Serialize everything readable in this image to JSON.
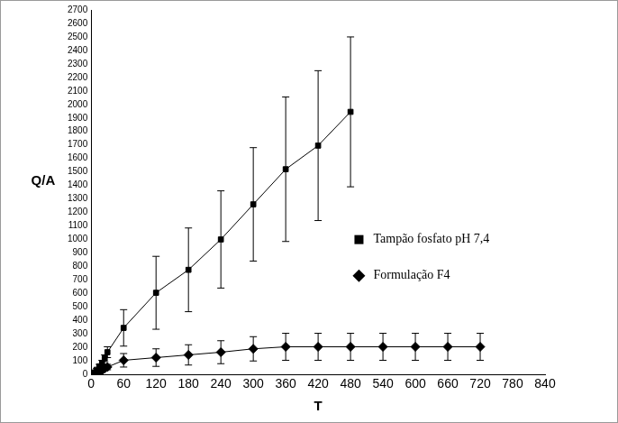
{
  "chart_data": {
    "type": "line",
    "x_label": "T",
    "y_label": "Q/A",
    "xlim": [
      0,
      840
    ],
    "xticks": [
      0,
      60,
      120,
      180,
      240,
      300,
      360,
      420,
      480,
      540,
      600,
      660,
      720,
      780,
      840
    ],
    "ylim": [
      0,
      2700
    ],
    "yticks": [
      0,
      100,
      200,
      300,
      400,
      500,
      600,
      700,
      800,
      900,
      1000,
      1100,
      1200,
      1300,
      1400,
      1500,
      1600,
      1700,
      1800,
      1900,
      2000,
      2100,
      2200,
      2300,
      2400,
      2500,
      2600,
      2700
    ],
    "grid": false,
    "legend": "right",
    "series": [
      {
        "name": "Tampão fosfato pH 7,4",
        "color": "#000000",
        "marker": "square",
        "x": [
          0,
          5,
          10,
          15,
          20,
          25,
          30,
          60,
          120,
          180,
          240,
          300,
          360,
          420,
          480
        ],
        "values": [
          0,
          15,
          35,
          60,
          85,
          120,
          165,
          345,
          605,
          775,
          1000,
          1260,
          1520,
          1695,
          1945
        ],
        "errors": [
          0,
          5,
          10,
          15,
          20,
          25,
          40,
          135,
          270,
          310,
          360,
          420,
          535,
          555,
          555
        ]
      },
      {
        "name": "Formulação F4",
        "color": "#000000",
        "marker": "diamond",
        "x": [
          0,
          5,
          10,
          15,
          20,
          25,
          30,
          60,
          120,
          180,
          240,
          300,
          360,
          420,
          480,
          540,
          600,
          660,
          720
        ],
        "values": [
          0,
          5,
          10,
          20,
          30,
          45,
          55,
          105,
          125,
          145,
          165,
          190,
          205,
          205,
          205,
          205,
          205,
          205,
          205
        ],
        "errors": [
          0,
          3,
          5,
          8,
          10,
          15,
          20,
          50,
          65,
          75,
          85,
          90,
          100,
          100,
          100,
          100,
          100,
          100,
          100
        ]
      }
    ]
  }
}
